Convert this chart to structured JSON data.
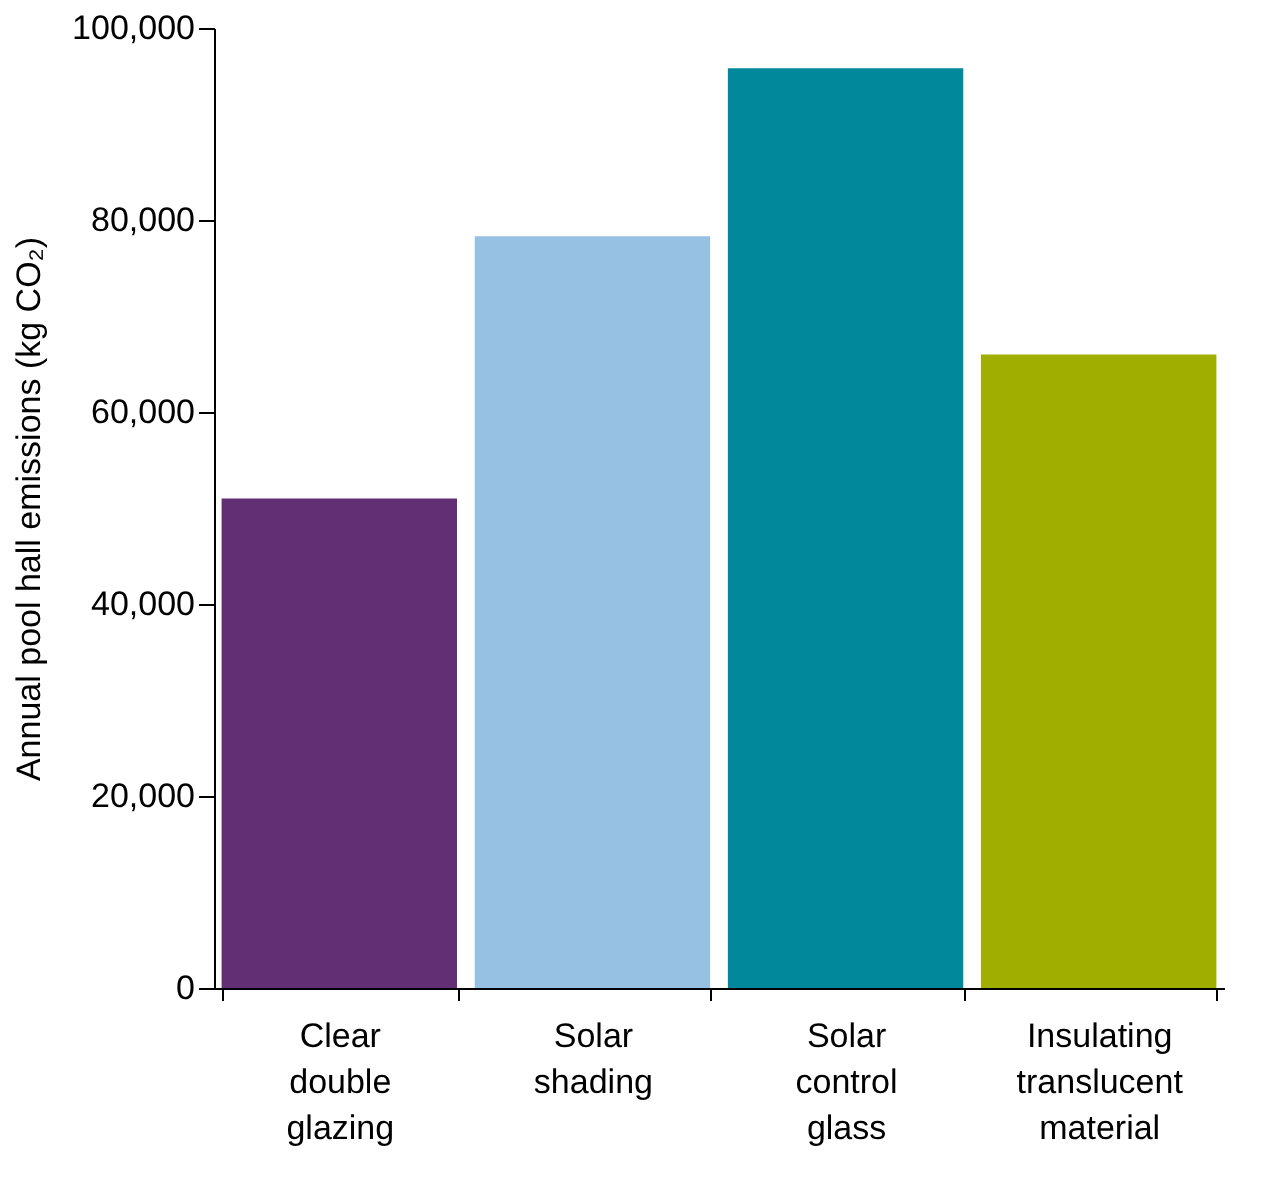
{
  "chart_data": {
    "type": "bar",
    "ylabel": "Annual pool hall emissions (kg CO₂)",
    "categories": [
      "Clear double glazing",
      "Solar shading",
      "Solar control glass",
      "Insulating translucent material"
    ],
    "values": [
      51000,
      78300,
      95800,
      66000
    ],
    "colors": [
      "#622f75",
      "#96c1e2",
      "#02889b",
      "#a0ae00"
    ],
    "ylim": [
      0,
      100000
    ],
    "yticks": [
      0,
      {
        "value": 20000,
        "label": "20,000"
      },
      {
        "value": 40000,
        "label": "40,000"
      },
      {
        "value": 60000,
        "label": "60,000"
      },
      {
        "value": 80000,
        "label": "80,000"
      },
      {
        "value": 100000,
        "label": "100,000"
      }
    ],
    "grid": false,
    "legend": false
  }
}
